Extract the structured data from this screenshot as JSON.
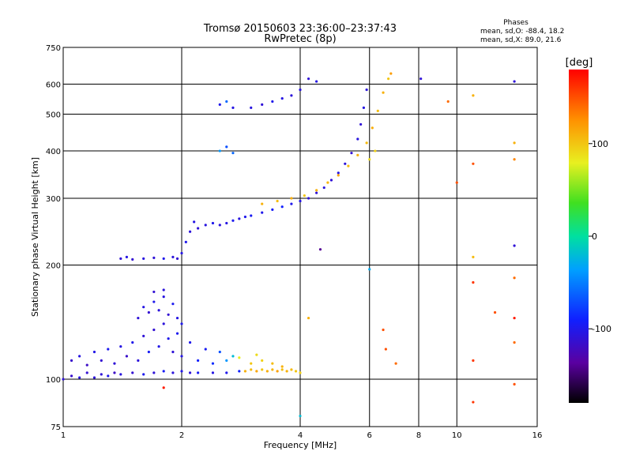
{
  "chart_data": {
    "type": "scatter",
    "title": "Tromsø 20150603 23:36:00–23:37:43",
    "subtitle": "RwPretec (8p)",
    "xlabel": "Frequency [MHz]",
    "ylabel": "Stationary phase Virtual Height [km]",
    "x_scale": "log",
    "y_scale": "log",
    "xlim": [
      1,
      16
    ],
    "ylim": [
      75,
      750
    ],
    "x_ticks": [
      1,
      2,
      4,
      6,
      8,
      10,
      16
    ],
    "x_tick_labels": [
      "1",
      "2",
      "4",
      "6",
      "8",
      "10",
      "16"
    ],
    "y_ticks": [
      75,
      100,
      200,
      300,
      400,
      500,
      600,
      750
    ],
    "y_tick_labels": [
      "75",
      "100",
      "200",
      "300",
      "400",
      "500",
      "600",
      "750"
    ],
    "grid": true,
    "stats": {
      "heading": "Phases",
      "line1": "mean, sd,O: -88.4, 18.2",
      "line2": "mean, sd,X:  89.0, 21.6"
    },
    "colorbar": {
      "label": "[deg]",
      "range": [
        -180,
        180
      ],
      "ticks": [
        100,
        0,
        -100
      ],
      "tick_labels": [
        "100",
        "0",
        "-100"
      ]
    },
    "series": [
      {
        "points": [
          {
            "f": 1.0,
            "h": 100,
            "p": -110
          },
          {
            "f": 1.05,
            "h": 102,
            "p": -115
          },
          {
            "f": 1.1,
            "h": 101,
            "p": -105
          },
          {
            "f": 1.15,
            "h": 104,
            "p": -112
          },
          {
            "f": 1.2,
            "h": 101,
            "p": -108
          },
          {
            "f": 1.25,
            "h": 103,
            "p": -110
          },
          {
            "f": 1.3,
            "h": 102,
            "p": -100
          },
          {
            "f": 1.35,
            "h": 104,
            "p": -118
          },
          {
            "f": 1.4,
            "h": 103,
            "p": -106
          },
          {
            "f": 1.5,
            "h": 104,
            "p": -112
          },
          {
            "f": 1.6,
            "h": 103,
            "p": -98
          },
          {
            "f": 1.7,
            "h": 104,
            "p": -110
          },
          {
            "f": 1.8,
            "h": 105,
            "p": -95
          },
          {
            "f": 1.9,
            "h": 104,
            "p": -108
          },
          {
            "f": 2.0,
            "h": 105,
            "p": -102
          },
          {
            "f": 2.1,
            "h": 104,
            "p": -110
          },
          {
            "f": 2.2,
            "h": 104,
            "p": -96
          },
          {
            "f": 2.4,
            "h": 104,
            "p": -104
          },
          {
            "f": 2.6,
            "h": 104,
            "p": -100
          },
          {
            "f": 2.8,
            "h": 105,
            "p": -90
          },
          {
            "f": 1.05,
            "h": 112,
            "p": -115
          },
          {
            "f": 1.1,
            "h": 115,
            "p": -105
          },
          {
            "f": 1.15,
            "h": 109,
            "p": -118
          },
          {
            "f": 1.2,
            "h": 118,
            "p": -102
          },
          {
            "f": 1.25,
            "h": 112,
            "p": -112
          },
          {
            "f": 1.3,
            "h": 120,
            "p": -98
          },
          {
            "f": 1.35,
            "h": 110,
            "p": -110
          },
          {
            "f": 1.4,
            "h": 122,
            "p": -104
          },
          {
            "f": 1.45,
            "h": 115,
            "p": -116
          },
          {
            "f": 1.5,
            "h": 125,
            "p": -100
          },
          {
            "f": 1.55,
            "h": 112,
            "p": -108
          },
          {
            "f": 1.6,
            "h": 130,
            "p": -110
          },
          {
            "f": 1.65,
            "h": 118,
            "p": -95
          },
          {
            "f": 1.7,
            "h": 135,
            "p": -112
          },
          {
            "f": 1.75,
            "h": 122,
            "p": -102
          },
          {
            "f": 1.8,
            "h": 140,
            "p": -108
          },
          {
            "f": 1.85,
            "h": 128,
            "p": -100
          },
          {
            "f": 1.9,
            "h": 118,
            "p": -110
          },
          {
            "f": 1.95,
            "h": 132,
            "p": -98
          },
          {
            "f": 2.0,
            "h": 115,
            "p": -104
          },
          {
            "f": 2.1,
            "h": 125,
            "p": -100
          },
          {
            "f": 2.2,
            "h": 112,
            "p": -92
          },
          {
            "f": 2.3,
            "h": 120,
            "p": -96
          },
          {
            "f": 2.4,
            "h": 110,
            "p": -85
          },
          {
            "f": 2.5,
            "h": 118,
            "p": -70
          },
          {
            "f": 2.6,
            "h": 112,
            "p": -40
          },
          {
            "f": 2.7,
            "h": 115,
            "p": -20
          },
          {
            "f": 1.55,
            "h": 145,
            "p": -110
          },
          {
            "f": 1.6,
            "h": 155,
            "p": -104
          },
          {
            "f": 1.65,
            "h": 150,
            "p": -112
          },
          {
            "f": 1.7,
            "h": 160,
            "p": -100
          },
          {
            "f": 1.75,
            "h": 152,
            "p": -108
          },
          {
            "f": 1.8,
            "h": 165,
            "p": -106
          },
          {
            "f": 1.85,
            "h": 148,
            "p": -112
          },
          {
            "f": 1.9,
            "h": 158,
            "p": -98
          },
          {
            "f": 1.95,
            "h": 145,
            "p": -104
          },
          {
            "f": 2.0,
            "h": 140,
            "p": -100
          },
          {
            "f": 1.7,
            "h": 170,
            "p": -112
          },
          {
            "f": 1.8,
            "h": 172,
            "p": -108
          },
          {
            "f": 2.9,
            "h": 105,
            "p": 110
          },
          {
            "f": 3.0,
            "h": 106,
            "p": 105
          },
          {
            "f": 3.1,
            "h": 105,
            "p": 115
          },
          {
            "f": 3.2,
            "h": 106,
            "p": 100
          },
          {
            "f": 3.3,
            "h": 105,
            "p": 112
          },
          {
            "f": 3.4,
            "h": 106,
            "p": 108
          },
          {
            "f": 3.5,
            "h": 105,
            "p": 118
          },
          {
            "f": 3.6,
            "h": 106,
            "p": 104
          },
          {
            "f": 3.7,
            "h": 105,
            "p": 110
          },
          {
            "f": 3.8,
            "h": 106,
            "p": 106
          },
          {
            "f": 3.9,
            "h": 105,
            "p": 100
          },
          {
            "f": 4.0,
            "h": 104,
            "p": 95
          },
          {
            "f": 3.0,
            "h": 110,
            "p": 100
          },
          {
            "f": 3.2,
            "h": 112,
            "p": 95
          },
          {
            "f": 3.4,
            "h": 110,
            "p": 105
          },
          {
            "f": 3.6,
            "h": 108,
            "p": 110
          },
          {
            "f": 2.8,
            "h": 114,
            "p": 80
          },
          {
            "f": 3.1,
            "h": 116,
            "p": 90
          },
          {
            "f": 1.4,
            "h": 208,
            "p": -110
          },
          {
            "f": 1.45,
            "h": 210,
            "p": -104
          },
          {
            "f": 1.5,
            "h": 207,
            "p": -112
          },
          {
            "f": 1.6,
            "h": 208,
            "p": -106
          },
          {
            "f": 1.7,
            "h": 209,
            "p": -110
          },
          {
            "f": 1.8,
            "h": 208,
            "p": -100
          },
          {
            "f": 1.9,
            "h": 210,
            "p": -108
          },
          {
            "f": 1.95,
            "h": 208,
            "p": -112
          },
          {
            "f": 2.0,
            "h": 215,
            "p": -104
          },
          {
            "f": 2.05,
            "h": 230,
            "p": -100
          },
          {
            "f": 2.1,
            "h": 245,
            "p": -108
          },
          {
            "f": 2.15,
            "h": 260,
            "p": -104
          },
          {
            "f": 2.2,
            "h": 250,
            "p": -110
          },
          {
            "f": 2.3,
            "h": 255,
            "p": -106
          },
          {
            "f": 2.4,
            "h": 258,
            "p": -100
          },
          {
            "f": 2.5,
            "h": 255,
            "p": -108
          },
          {
            "f": 2.6,
            "h": 258,
            "p": -104
          },
          {
            "f": 2.7,
            "h": 262,
            "p": -98
          },
          {
            "f": 2.8,
            "h": 265,
            "p": -106
          },
          {
            "f": 2.9,
            "h": 268,
            "p": -100
          },
          {
            "f": 3.0,
            "h": 270,
            "p": -96
          },
          {
            "f": 3.2,
            "h": 275,
            "p": -100
          },
          {
            "f": 3.4,
            "h": 280,
            "p": -94
          },
          {
            "f": 3.6,
            "h": 285,
            "p": -90
          },
          {
            "f": 3.8,
            "h": 290,
            "p": -100
          },
          {
            "f": 4.0,
            "h": 295,
            "p": -104
          },
          {
            "f": 4.2,
            "h": 300,
            "p": -108
          },
          {
            "f": 4.4,
            "h": 310,
            "p": -110
          },
          {
            "f": 4.6,
            "h": 320,
            "p": -106
          },
          {
            "f": 4.8,
            "h": 335,
            "p": -110
          },
          {
            "f": 5.0,
            "h": 350,
            "p": -104
          },
          {
            "f": 5.2,
            "h": 370,
            "p": -108
          },
          {
            "f": 5.4,
            "h": 395,
            "p": -112
          },
          {
            "f": 5.6,
            "h": 430,
            "p": -106
          },
          {
            "f": 5.7,
            "h": 470,
            "p": -110
          },
          {
            "f": 5.8,
            "h": 520,
            "p": -104
          },
          {
            "f": 5.9,
            "h": 580,
            "p": -108
          },
          {
            "f": 3.2,
            "h": 290,
            "p": 110
          },
          {
            "f": 3.5,
            "h": 295,
            "p": 105
          },
          {
            "f": 3.8,
            "h": 300,
            "p": 112
          },
          {
            "f": 4.1,
            "h": 305,
            "p": 100
          },
          {
            "f": 4.4,
            "h": 315,
            "p": 110
          },
          {
            "f": 4.7,
            "h": 330,
            "p": 108
          },
          {
            "f": 5.0,
            "h": 345,
            "p": 115
          },
          {
            "f": 5.3,
            "h": 365,
            "p": 104
          },
          {
            "f": 5.6,
            "h": 390,
            "p": 110
          },
          {
            "f": 5.9,
            "h": 420,
            "p": 106
          },
          {
            "f": 6.1,
            "h": 460,
            "p": 112
          },
          {
            "f": 6.3,
            "h": 510,
            "p": 104
          },
          {
            "f": 6.5,
            "h": 570,
            "p": 110
          },
          {
            "f": 6.7,
            "h": 620,
            "p": 100
          },
          {
            "f": 6.0,
            "h": 380,
            "p": 90
          },
          {
            "f": 6.2,
            "h": 400,
            "p": 95
          },
          {
            "f": 2.5,
            "h": 400,
            "p": -40
          },
          {
            "f": 2.6,
            "h": 410,
            "p": -70
          },
          {
            "f": 2.7,
            "h": 395,
            "p": -60
          },
          {
            "f": 2.5,
            "h": 530,
            "p": -100
          },
          {
            "f": 2.6,
            "h": 540,
            "p": -60
          },
          {
            "f": 2.7,
            "h": 520,
            "p": -104
          },
          {
            "f": 3.0,
            "h": 520,
            "p": -106
          },
          {
            "f": 3.2,
            "h": 530,
            "p": -110
          },
          {
            "f": 3.4,
            "h": 540,
            "p": -100
          },
          {
            "f": 3.6,
            "h": 550,
            "p": -104
          },
          {
            "f": 3.8,
            "h": 560,
            "p": -108
          },
          {
            "f": 4.0,
            "h": 580,
            "p": -106
          },
          {
            "f": 4.2,
            "h": 620,
            "p": -110
          },
          {
            "f": 4.4,
            "h": 610,
            "p": -104
          },
          {
            "f": 9.5,
            "h": 540,
            "p": 140
          },
          {
            "f": 11,
            "h": 560,
            "p": 110
          },
          {
            "f": 14,
            "h": 610,
            "p": -110
          },
          {
            "f": 14,
            "h": 420,
            "p": 110
          },
          {
            "f": 11,
            "h": 370,
            "p": 150
          },
          {
            "f": 14,
            "h": 380,
            "p": 130
          },
          {
            "f": 10,
            "h": 330,
            "p": 150
          },
          {
            "f": 11,
            "h": 210,
            "p": 105
          },
          {
            "f": 14,
            "h": 225,
            "p": -110
          },
          {
            "f": 14,
            "h": 185,
            "p": 140
          },
          {
            "f": 11,
            "h": 180,
            "p": 160
          },
          {
            "f": 12.5,
            "h": 150,
            "p": 150
          },
          {
            "f": 14,
            "h": 145,
            "p": 170
          },
          {
            "f": 14,
            "h": 125,
            "p": 140
          },
          {
            "f": 11,
            "h": 112,
            "p": 160
          },
          {
            "f": 14,
            "h": 97,
            "p": 150
          },
          {
            "f": 11,
            "h": 87,
            "p": 160
          },
          {
            "f": 4.0,
            "h": 80,
            "p": -20
          },
          {
            "f": 1.8,
            "h": 95,
            "p": 170
          },
          {
            "f": 4.5,
            "h": 220,
            "p": -140
          },
          {
            "f": 6.0,
            "h": 195,
            "p": -30
          },
          {
            "f": 6.5,
            "h": 135,
            "p": 150
          },
          {
            "f": 6.6,
            "h": 120,
            "p": 150
          },
          {
            "f": 7.0,
            "h": 110,
            "p": 140
          },
          {
            "f": 4.2,
            "h": 145,
            "p": 110
          },
          {
            "f": 6.8,
            "h": 640,
            "p": 120
          },
          {
            "f": 8.1,
            "h": 620,
            "p": -110
          }
        ]
      }
    ]
  }
}
